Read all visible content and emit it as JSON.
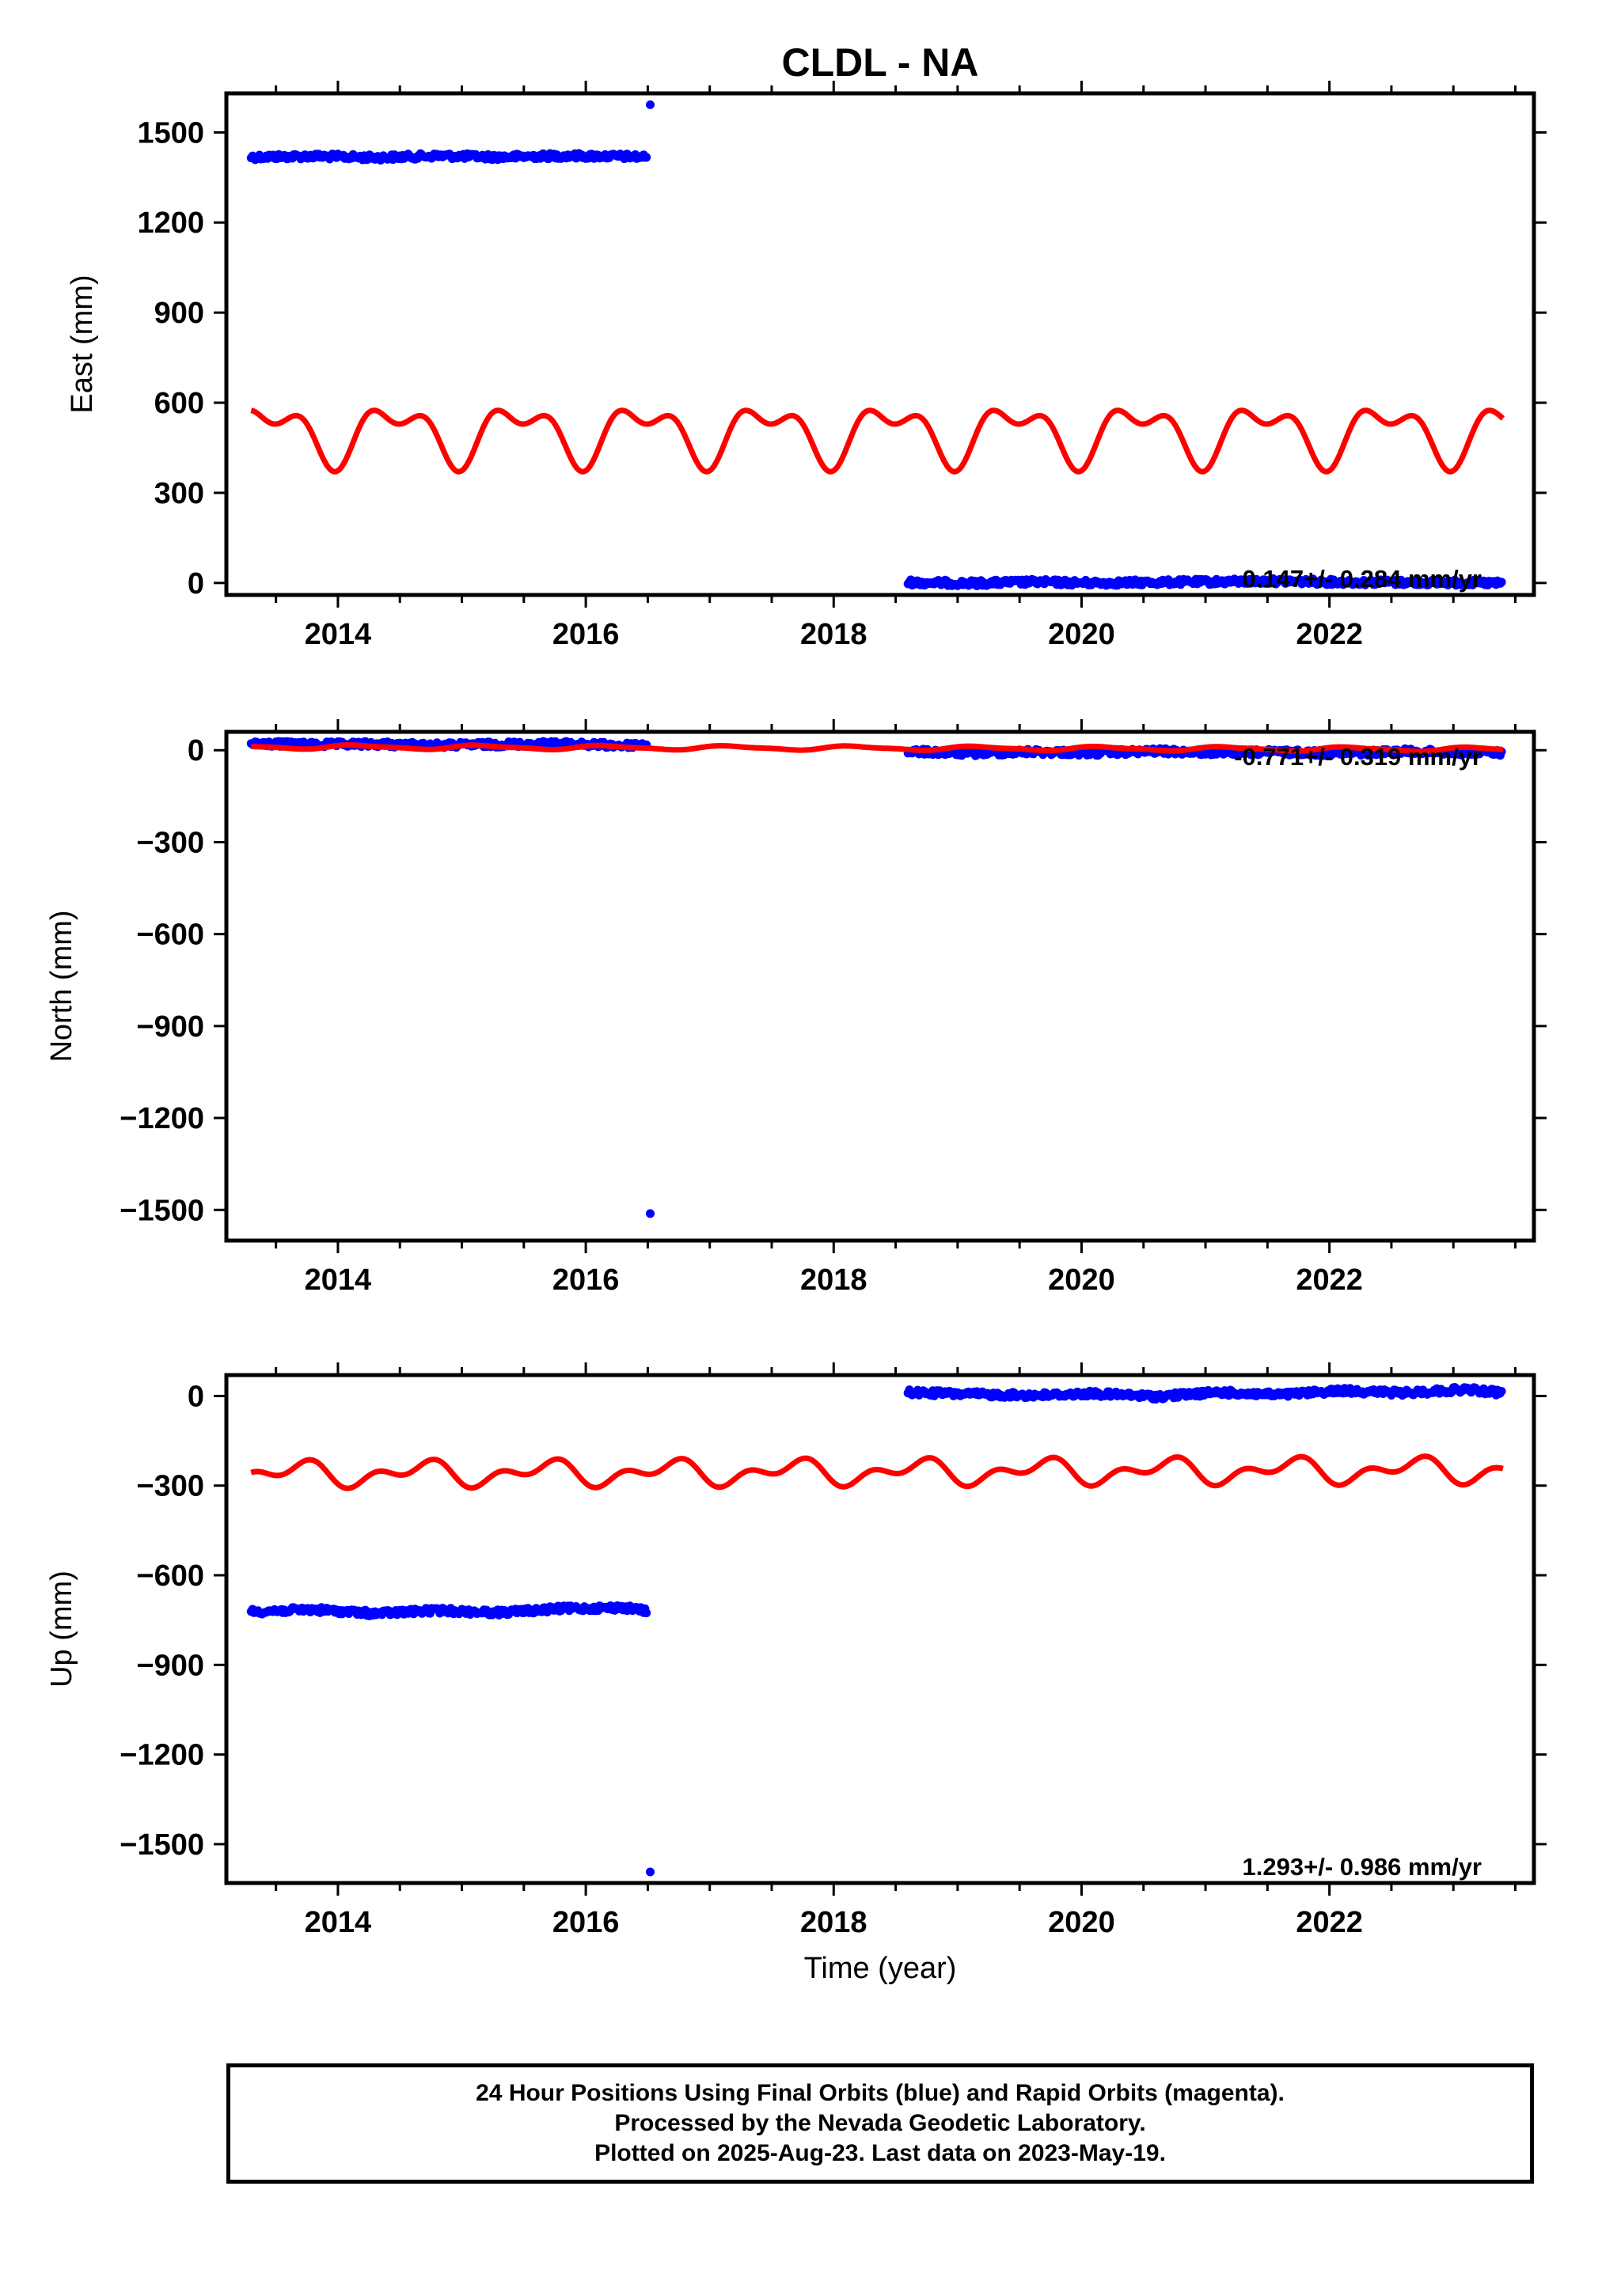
{
  "chart_data": {
    "type": "scatter",
    "title": "CLDL - NA",
    "xlabel": "Time (year)",
    "xlim": [
      2013.1,
      2023.65
    ],
    "xticks": [
      2014,
      2016,
      2018,
      2020,
      2022
    ],
    "grid": false,
    "panels": [
      {
        "name": "east",
        "ylabel": "East (mm)",
        "ylim": [
          -40,
          1630
        ],
        "yticks": [
          0,
          300,
          600,
          900,
          1200,
          1500
        ],
        "rate_label": "0.147+/- 0.284 mm/yr",
        "series": [
          {
            "type": "scatter",
            "color": "#0000ff",
            "segments": [
              {
                "x": [
                  2013.3,
                  2013.8,
                  2014.3,
                  2014.8,
                  2015.3,
                  2015.8,
                  2016.3,
                  2016.5
                ],
                "y": [
                  1418,
                  1421,
                  1416,
                  1422,
                  1418,
                  1422,
                  1420,
                  1418
                ]
              },
              {
                "x": [
                  2018.6,
                  2019.1,
                  2019.6,
                  2020.1,
                  2020.6,
                  2021.1,
                  2021.6,
                  2022.1,
                  2022.6,
                  2023.1,
                  2023.4
                ],
                "y": [
                  2,
                  -1,
                  3,
                  0,
                  2,
                  4,
                  6,
                  3,
                  2,
                  1,
                  -2
                ]
              }
            ],
            "outliers": [
              {
                "x": 2016.52,
                "y": 1592
              }
            ]
          },
          {
            "type": "line",
            "color": "#ff0000",
            "model": {
              "start": 2013.3,
              "end": 2023.4,
              "offset": 500,
              "trend": 0,
              "annual_amp": 80,
              "annual_phase": 2.9,
              "semi_amp": 50,
              "semi_phase": 2.9
            }
          }
        ]
      },
      {
        "name": "north",
        "ylabel": "North (mm)",
        "ylim": [
          -1600,
          60
        ],
        "yticks": [
          0,
          -300,
          -600,
          -900,
          -1200,
          -1500
        ],
        "rate_label": "-0.771+/- 0.319 mm/yr",
        "series": [
          {
            "type": "scatter",
            "color": "#0000ff",
            "segments": [
              {
                "x": [
                  2013.3,
                  2013.8,
                  2014.3,
                  2014.8,
                  2015.3,
                  2015.8,
                  2016.3,
                  2016.5
                ],
                "y": [
                  22,
                  18,
                  20,
                  16,
                  19,
                  21,
                  15,
                  20
                ]
              },
              {
                "x": [
                  2018.6,
                  2019.1,
                  2019.6,
                  2020.1,
                  2020.6,
                  2021.1,
                  2021.6,
                  2022.1,
                  2022.6,
                  2023.1,
                  2023.4
                ],
                "y": [
                  -4,
                  -10,
                  -5,
                  -9,
                  -3,
                  -8,
                  -6,
                  -10,
                  -4,
                  -7,
                  -8
                ]
              }
            ],
            "outliers": [
              {
                "x": 2016.52,
                "y": -1512
              }
            ]
          },
          {
            "type": "line",
            "color": "#ff0000",
            "model": {
              "start": 2013.3,
              "end": 2023.4,
              "offset": 7,
              "trend": -0.8,
              "annual_amp": 6,
              "annual_phase": 1.0,
              "semi_amp": 2,
              "semi_phase": 0.5
            }
          }
        ]
      },
      {
        "name": "up",
        "ylabel": "Up (mm)",
        "ylim": [
          -1630,
          70
        ],
        "yticks": [
          0,
          -300,
          -600,
          -900,
          -1200,
          -1500
        ],
        "rate_label": "1.293+/- 0.986 mm/yr",
        "series": [
          {
            "type": "scatter",
            "color": "#0000ff",
            "segments": [
              {
                "x": [
                  2013.3,
                  2013.8,
                  2014.3,
                  2014.8,
                  2015.3,
                  2015.8,
                  2016.3,
                  2016.5
                ],
                "y": [
                  -722,
                  -715,
                  -728,
                  -718,
                  -725,
                  -712,
                  -708,
                  -720
                ]
              },
              {
                "x": [
                  2018.6,
                  2019.1,
                  2019.6,
                  2020.1,
                  2020.6,
                  2021.1,
                  2021.6,
                  2022.1,
                  2022.6,
                  2023.1,
                  2023.4
                ],
                "y": [
                  12,
                  6,
                  2,
                  8,
                  -2,
                  12,
                  4,
                  18,
                  10,
                  22,
                  10
                ]
              }
            ],
            "outliers": [
              {
                "x": 2016.52,
                "y": -1593
              }
            ]
          },
          {
            "type": "line",
            "color": "#ff0000",
            "model": {
              "start": 2013.3,
              "end": 2023.4,
              "offset": -255,
              "trend": 1.3,
              "annual_amp": 30,
              "annual_phase": 4.2,
              "semi_amp": 25,
              "semi_phase": 3.8
            }
          }
        ]
      }
    ]
  },
  "footer": {
    "line1": "24 Hour Positions Using Final Orbits (blue) and Rapid Orbits (magenta).",
    "line2": "Processed by the Nevada Geodetic Laboratory.",
    "line3": "Plotted on 2025-Aug-23. Last data on 2023-May-19."
  }
}
